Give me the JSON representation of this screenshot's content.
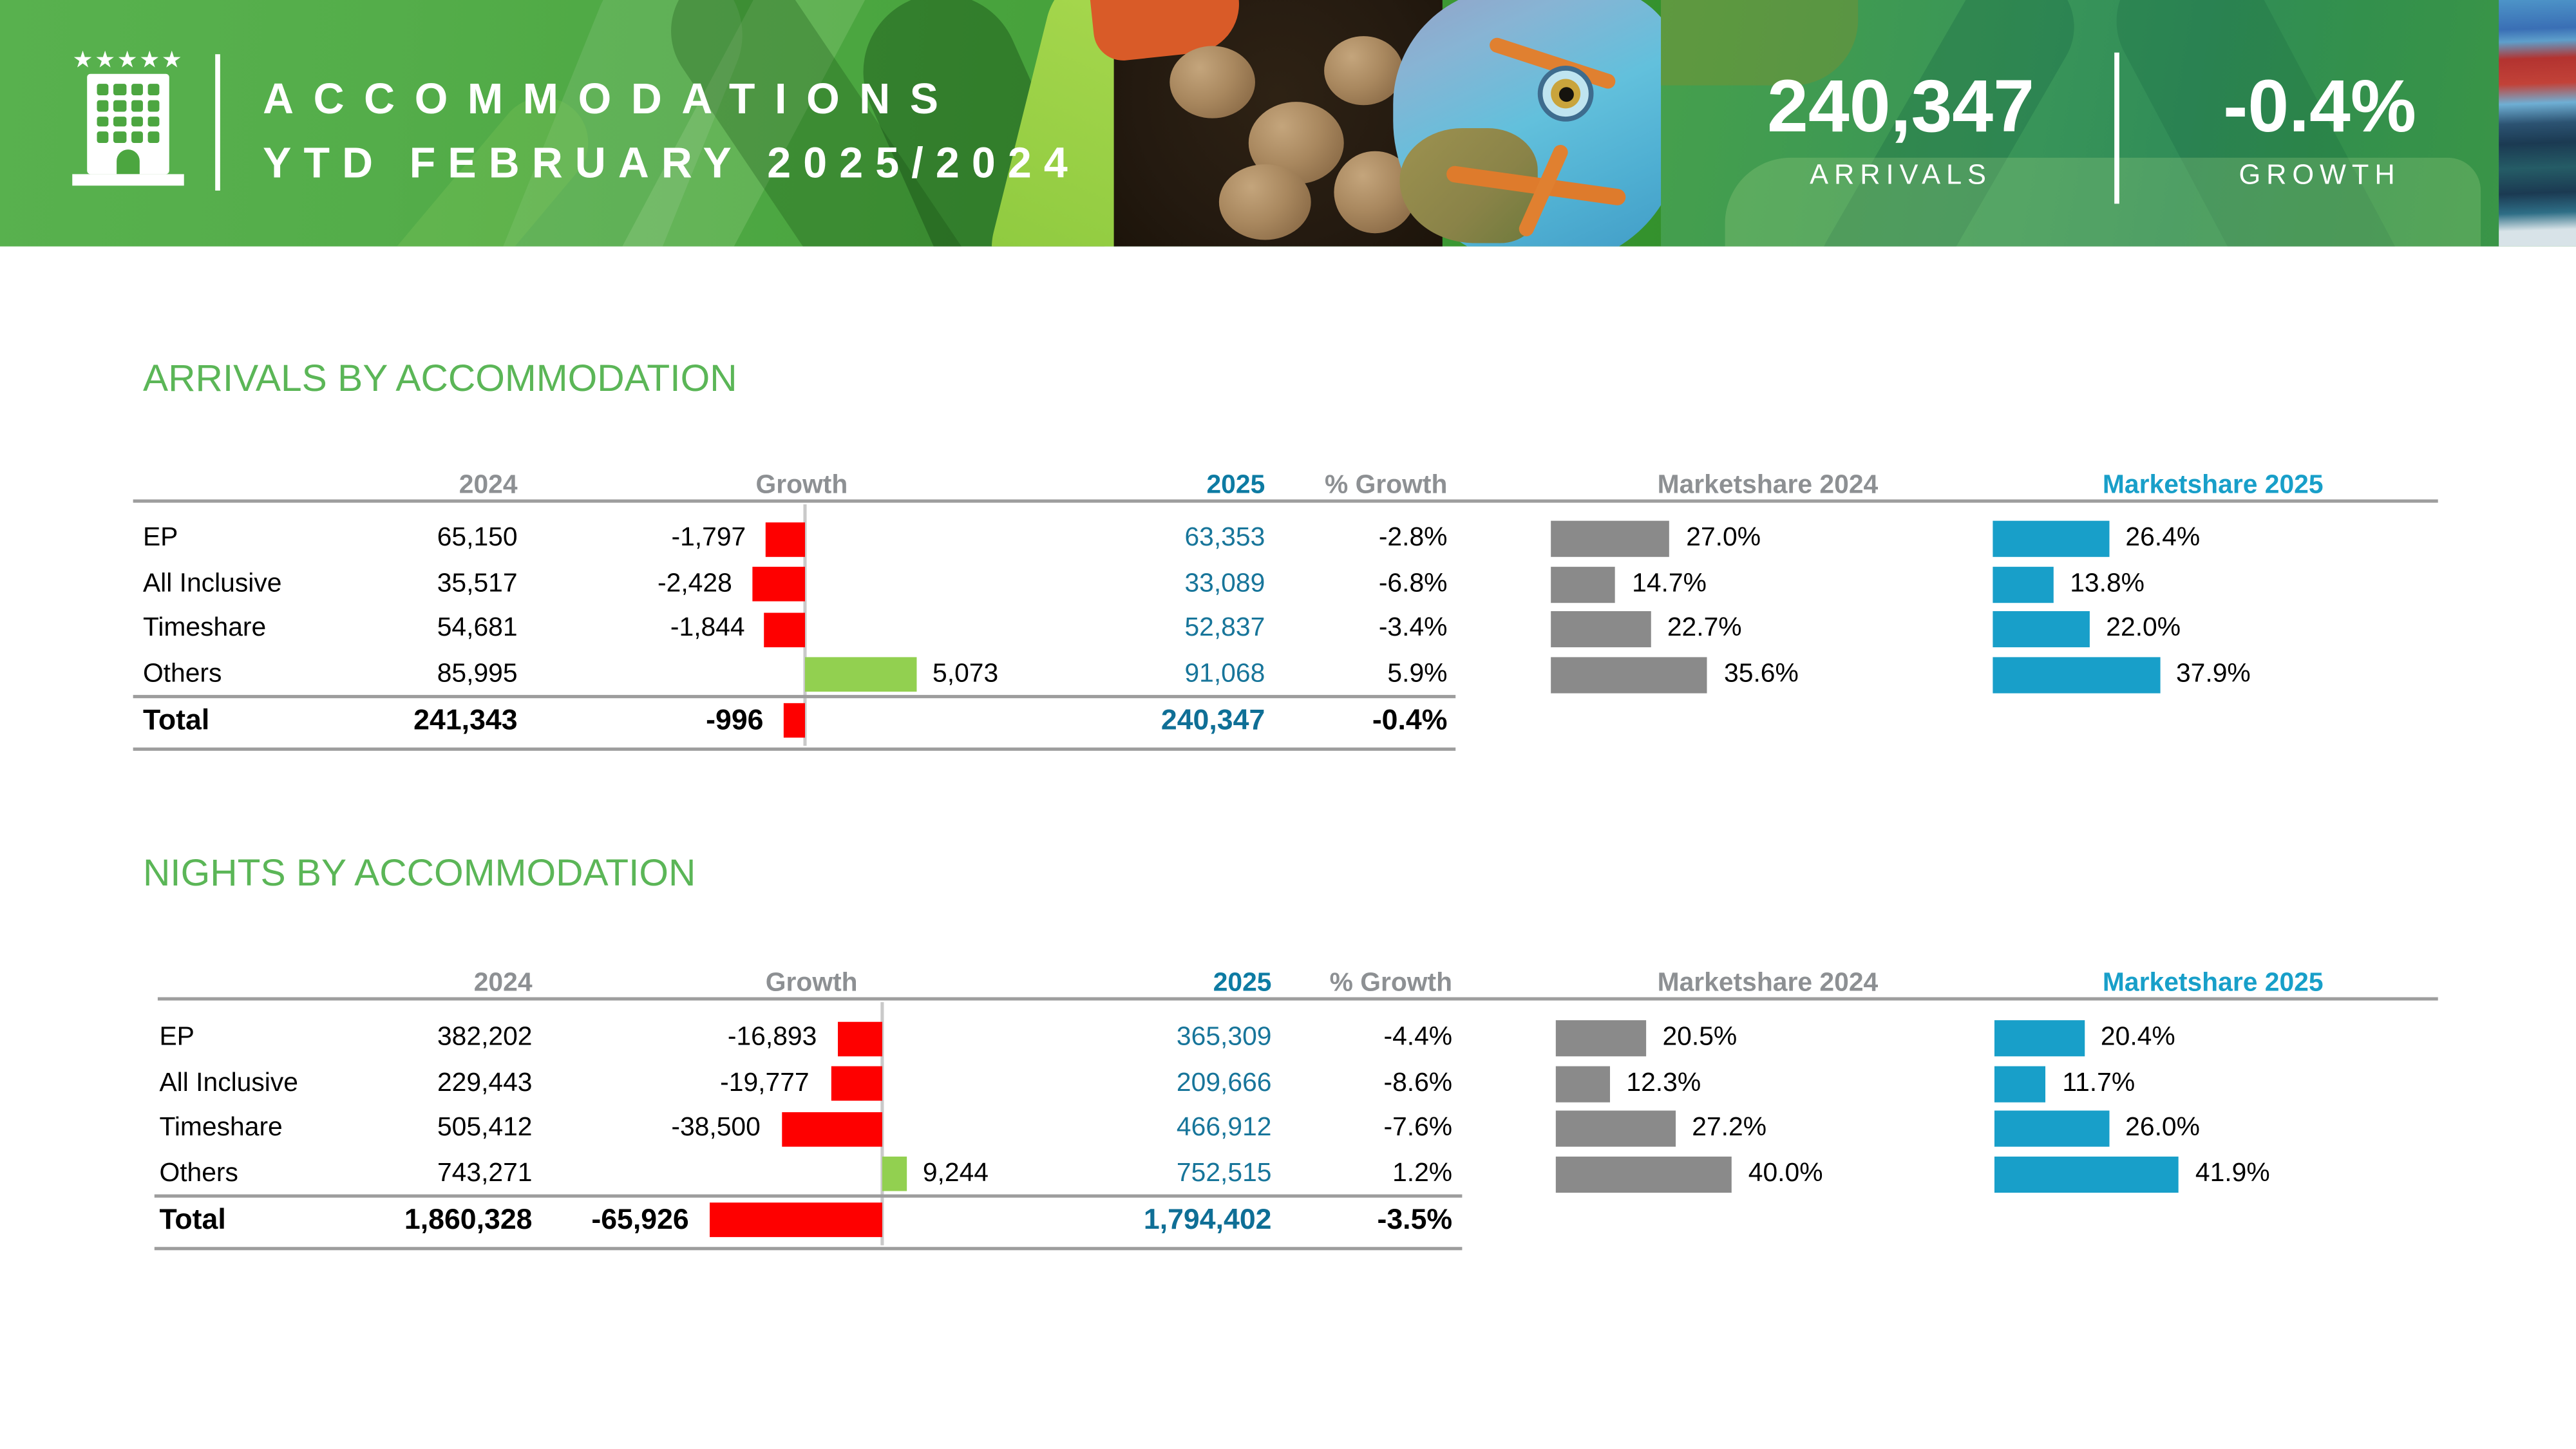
{
  "header": {
    "logo": {
      "stars": "★★★★★"
    },
    "title_line1": "ACCOMMODATIONS",
    "title_line2": "YTD FEBRUARY 2025/2024",
    "kpis": [
      {
        "value": "240,347",
        "label": "ARRIVALS"
      },
      {
        "value": "-0.4%",
        "label": "GROWTH"
      }
    ]
  },
  "colors": {
    "accent-green": "#5BB657",
    "teal-value": "#17759A",
    "teal-total": "#0F6F96",
    "teal-header": "#0D7BA3",
    "teal-bar": "#189FC9",
    "gray-bar": "#8A8A8A",
    "gray-text": "#8D9093",
    "line-gray": "#9D9D9D",
    "axis-gray": "#C9C9C9",
    "bar-red": "#FE0000",
    "bar-green": "#92D050"
  },
  "tables": [
    {
      "title": "ARRIVALS BY ACCOMMODATION",
      "headers": {
        "y2024": "2024",
        "growth": "Growth",
        "y2025": "2025",
        "pct": "% Growth",
        "ms2024": "Marketshare 2024",
        "ms2025": "Marketshare 2025"
      },
      "rows": [
        {
          "label": "EP",
          "y2024": "65,150",
          "growth": -1797,
          "growth_label": "-1,797",
          "y2025": "63,353",
          "pct": "-2.8%",
          "ms2024": 27.0,
          "ms2024_label": "27.0%",
          "ms2025": 26.4,
          "ms2025_label": "26.4%"
        },
        {
          "label": "All Inclusive",
          "y2024": "35,517",
          "growth": -2428,
          "growth_label": "-2,428",
          "y2025": "33,089",
          "pct": "-6.8%",
          "ms2024": 14.7,
          "ms2024_label": "14.7%",
          "ms2025": 13.8,
          "ms2025_label": "13.8%"
        },
        {
          "label": "Timeshare",
          "y2024": "54,681",
          "growth": -1844,
          "growth_label": "-1,844",
          "y2025": "52,837",
          "pct": "-3.4%",
          "ms2024": 22.7,
          "ms2024_label": "22.7%",
          "ms2025": 22.0,
          "ms2025_label": "22.0%"
        },
        {
          "label": "Others",
          "y2024": "85,995",
          "growth": 5073,
          "growth_label": "5,073",
          "y2025": "91,068",
          "pct": "5.9%",
          "ms2024": 35.6,
          "ms2024_label": "35.6%",
          "ms2025": 37.9,
          "ms2025_label": "37.9%"
        }
      ],
      "total": {
        "label": "Total",
        "y2024": "241,343",
        "growth": -996,
        "growth_label": "-996",
        "y2025": "240,347",
        "pct": "-0.4%"
      }
    },
    {
      "title": "NIGHTS BY ACCOMMODATION",
      "headers": {
        "y2024": "2024",
        "growth": "Growth",
        "y2025": "2025",
        "pct": "% Growth",
        "ms2024": "Marketshare 2024",
        "ms2025": "Marketshare 2025"
      },
      "rows": [
        {
          "label": "EP",
          "y2024": "382,202",
          "growth": -16893,
          "growth_label": "-16,893",
          "y2025": "365,309",
          "pct": "-4.4%",
          "ms2024": 20.5,
          "ms2024_label": "20.5%",
          "ms2025": 20.4,
          "ms2025_label": "20.4%"
        },
        {
          "label": "All Inclusive",
          "y2024": "229,443",
          "growth": -19777,
          "growth_label": "-19,777",
          "y2025": "209,666",
          "pct": "-8.6%",
          "ms2024": 12.3,
          "ms2024_label": "12.3%",
          "ms2025": 11.7,
          "ms2025_label": "11.7%"
        },
        {
          "label": "Timeshare",
          "y2024": "505,412",
          "growth": -38500,
          "growth_label": "-38,500",
          "y2025": "466,912",
          "pct": "-7.6%",
          "ms2024": 27.2,
          "ms2024_label": "27.2%",
          "ms2025": 26.0,
          "ms2025_label": "26.0%"
        },
        {
          "label": "Others",
          "y2024": "743,271",
          "growth": 9244,
          "growth_label": "9,244",
          "y2025": "752,515",
          "pct": "1.2%",
          "ms2024": 40.0,
          "ms2024_label": "40.0%",
          "ms2025": 41.9,
          "ms2025_label": "41.9%"
        }
      ],
      "total": {
        "label": "Total",
        "y2024": "1,860,328",
        "growth": -65926,
        "growth_label": "-65,926",
        "y2025": "1,794,402",
        "pct": "-3.5%"
      }
    }
  ],
  "chart_data": [
    {
      "type": "bar",
      "title": "ARRIVALS BY ACCOMMODATION",
      "categories": [
        "EP",
        "All Inclusive",
        "Timeshare",
        "Others",
        "Total"
      ],
      "series": [
        {
          "name": "2024",
          "values": [
            65150,
            35517,
            54681,
            85995,
            241343
          ]
        },
        {
          "name": "Growth",
          "values": [
            -1797,
            -2428,
            -1844,
            5073,
            -996
          ]
        },
        {
          "name": "2025",
          "values": [
            63353,
            33089,
            52837,
            91068,
            240347
          ]
        },
        {
          "name": "% Growth",
          "values": [
            -2.8,
            -6.8,
            -3.4,
            5.9,
            -0.4
          ]
        },
        {
          "name": "Marketshare 2024 (%)",
          "values": [
            27.0,
            14.7,
            22.7,
            35.6,
            null
          ]
        },
        {
          "name": "Marketshare 2025 (%)",
          "values": [
            26.4,
            13.8,
            22.0,
            37.9,
            null
          ]
        }
      ],
      "legend_position": "none",
      "grid": false
    },
    {
      "type": "bar",
      "title": "NIGHTS BY ACCOMMODATION",
      "categories": [
        "EP",
        "All Inclusive",
        "Timeshare",
        "Others",
        "Total"
      ],
      "series": [
        {
          "name": "2024",
          "values": [
            382202,
            229443,
            505412,
            743271,
            1860328
          ]
        },
        {
          "name": "Growth",
          "values": [
            -16893,
            -19777,
            -38500,
            9244,
            -65926
          ]
        },
        {
          "name": "2025",
          "values": [
            365309,
            209666,
            466912,
            752515,
            1794402
          ]
        },
        {
          "name": "% Growth",
          "values": [
            -4.4,
            -8.6,
            -7.6,
            1.2,
            -3.5
          ]
        },
        {
          "name": "Marketshare 2024 (%)",
          "values": [
            20.5,
            12.3,
            27.2,
            40.0,
            null
          ]
        },
        {
          "name": "Marketshare 2025 (%)",
          "values": [
            20.4,
            11.7,
            26.0,
            41.9,
            null
          ]
        }
      ],
      "legend_position": "none",
      "grid": false
    }
  ]
}
